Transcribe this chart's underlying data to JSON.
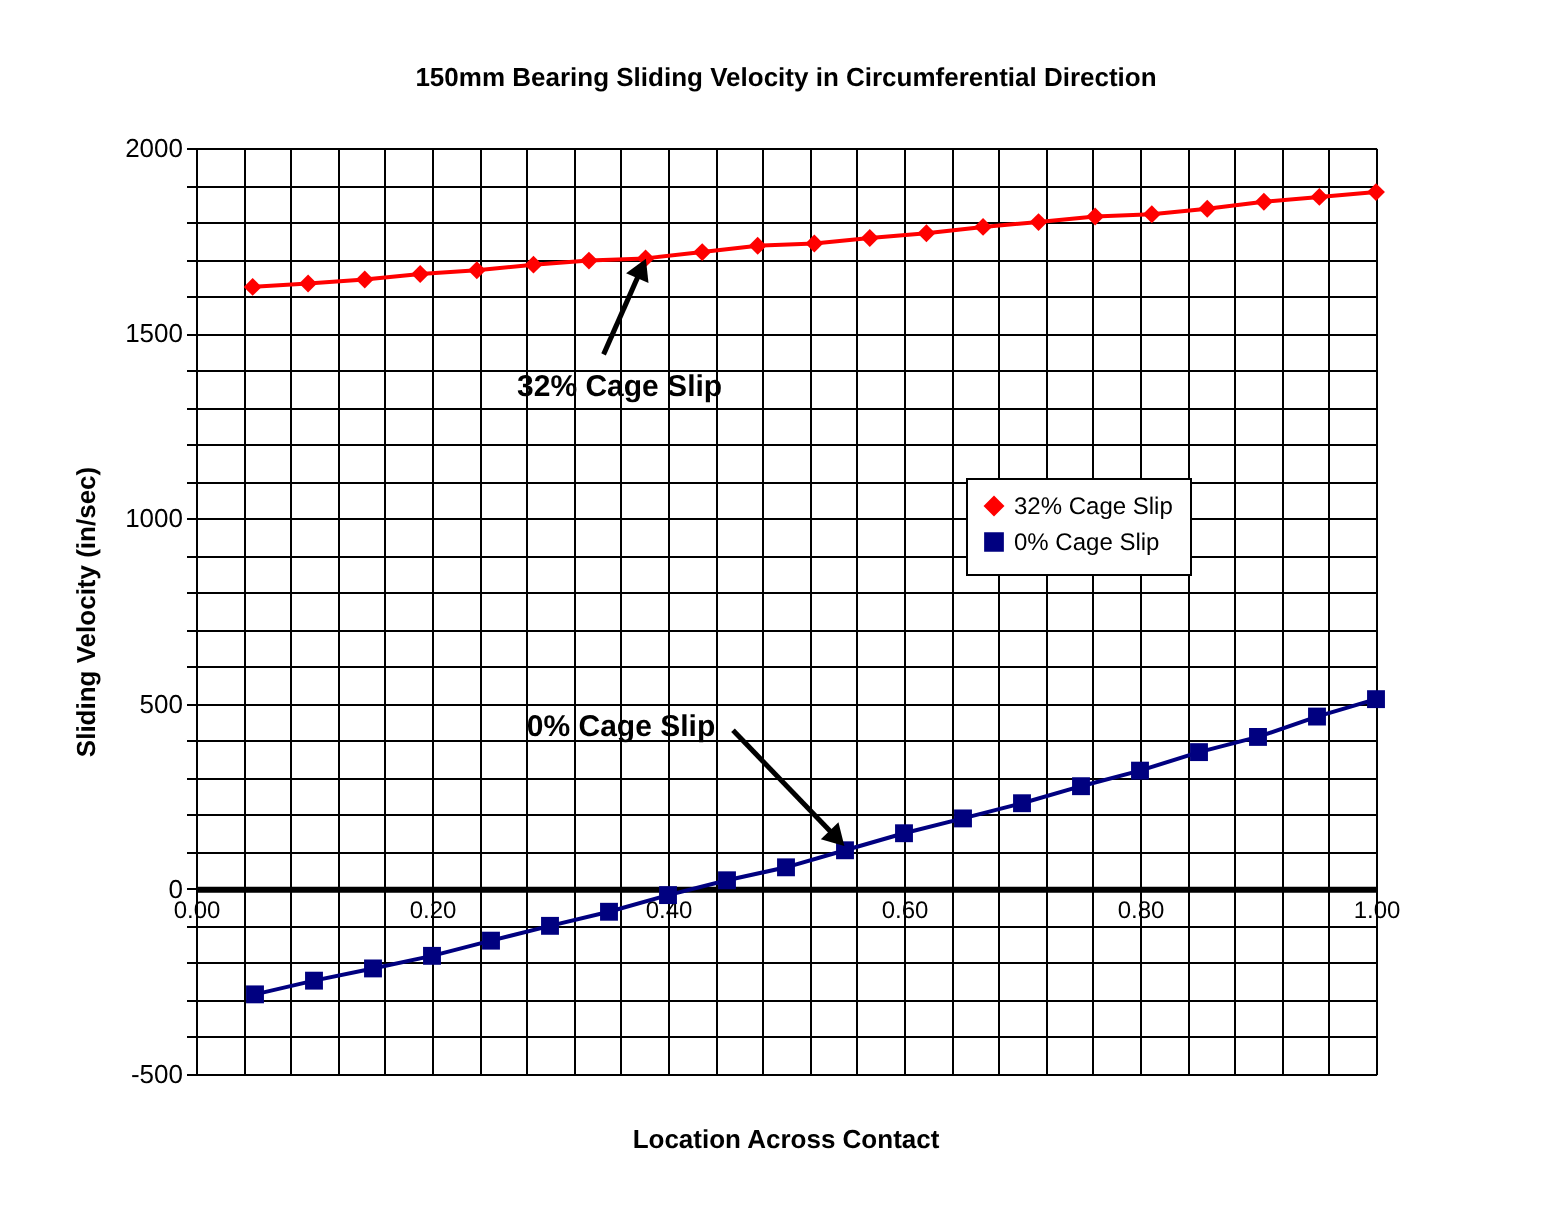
{
  "chart_data": {
    "type": "line",
    "title": "150mm Bearing Sliding Velocity in Circumferential Direction",
    "xlabel": "Location Across Contact",
    "ylabel": "Sliding Velocity (in/sec)",
    "series": [
      {
        "name": "32% Cage Slip",
        "color": "#ff0000",
        "marker": "diamond",
        "x": [
          0.048,
          0.095,
          0.143,
          0.19,
          0.238,
          0.286,
          0.333,
          0.381,
          0.429,
          0.476,
          0.524,
          0.571,
          0.619,
          0.667,
          0.714,
          0.762,
          0.81,
          0.857,
          0.905,
          0.952,
          1.0
        ],
        "values": [
          1625,
          1634,
          1645,
          1660,
          1670,
          1685,
          1696,
          1702,
          1719,
          1736,
          1742,
          1757,
          1770,
          1787,
          1800,
          1815,
          1821,
          1836,
          1855,
          1868,
          1881
        ]
      },
      {
        "name": "0% Cage Slip",
        "color": "#000080",
        "marker": "square",
        "x": [
          0.05,
          0.1,
          0.15,
          0.2,
          0.25,
          0.3,
          0.35,
          0.4,
          0.45,
          0.5,
          0.55,
          0.6,
          0.65,
          0.7,
          0.75,
          0.8,
          0.85,
          0.9,
          0.95,
          1.0
        ],
        "values": [
          -285,
          -248,
          -215,
          -181,
          -140,
          -100,
          -62,
          -17,
          23,
          58,
          104,
          150,
          190,
          231,
          277,
          319,
          369,
          410,
          465,
          512
        ]
      }
    ],
    "annotations": [
      {
        "text": "32% Cage Slip",
        "x": 0.381,
        "y": 1702
      },
      {
        "text": "0% Cage Slip",
        "x": 0.55,
        "y": 104
      }
    ],
    "xlim": [
      0,
      1
    ],
    "xticks": [
      {
        "value": 0,
        "label": "0.00"
      },
      {
        "value": 0.04,
        "label": null
      },
      {
        "value": 0.08,
        "label": null
      },
      {
        "value": 0.12,
        "label": null
      },
      {
        "value": 0.16,
        "label": null
      },
      {
        "value": 0.2,
        "label": "0.20"
      },
      {
        "value": 0.24,
        "label": null
      },
      {
        "value": 0.28,
        "label": null
      },
      {
        "value": 0.32,
        "label": null
      },
      {
        "value": 0.36,
        "label": null
      },
      {
        "value": 0.4,
        "label": "0.40"
      },
      {
        "value": 0.44,
        "label": null
      },
      {
        "value": 0.48,
        "label": null
      },
      {
        "value": 0.52,
        "label": null
      },
      {
        "value": 0.56,
        "label": null
      },
      {
        "value": 0.6,
        "label": "0.60"
      },
      {
        "value": 0.64,
        "label": null
      },
      {
        "value": 0.68,
        "label": null
      },
      {
        "value": 0.72,
        "label": null
      },
      {
        "value": 0.76,
        "label": null
      },
      {
        "value": 0.8,
        "label": "0.80"
      },
      {
        "value": 0.84,
        "label": null
      },
      {
        "value": 0.88,
        "label": null
      },
      {
        "value": 0.92,
        "label": null
      },
      {
        "value": 0.96,
        "label": null
      },
      {
        "value": 1,
        "label": "1.00"
      }
    ],
    "ylim": [
      -500,
      2000
    ],
    "yticks": [
      -500,
      {
        "value": -400,
        "label": null
      },
      {
        "value": -300,
        "label": null
      },
      {
        "value": -200,
        "label": null
      },
      {
        "value": -100,
        "label": null
      },
      0,
      {
        "value": 100,
        "label": null
      },
      {
        "value": 200,
        "label": null
      },
      {
        "value": 300,
        "label": null
      },
      {
        "value": 400,
        "label": null
      },
      500,
      {
        "value": 600,
        "label": null
      },
      {
        "value": 700,
        "label": null
      },
      {
        "value": 800,
        "label": null
      },
      {
        "value": 900,
        "label": null
      },
      1000,
      {
        "value": 1100,
        "label": null
      },
      {
        "value": 1200,
        "label": null
      },
      {
        "value": 1300,
        "label": null
      },
      {
        "value": 1400,
        "label": null
      },
      1500,
      {
        "value": 1600,
        "label": null
      },
      {
        "value": 1700,
        "label": null
      },
      {
        "value": 1800,
        "label": null
      },
      {
        "value": 1900,
        "label": null
      },
      2000
    ],
    "grid": true,
    "legend": "right",
    "line_style": "solid"
  }
}
